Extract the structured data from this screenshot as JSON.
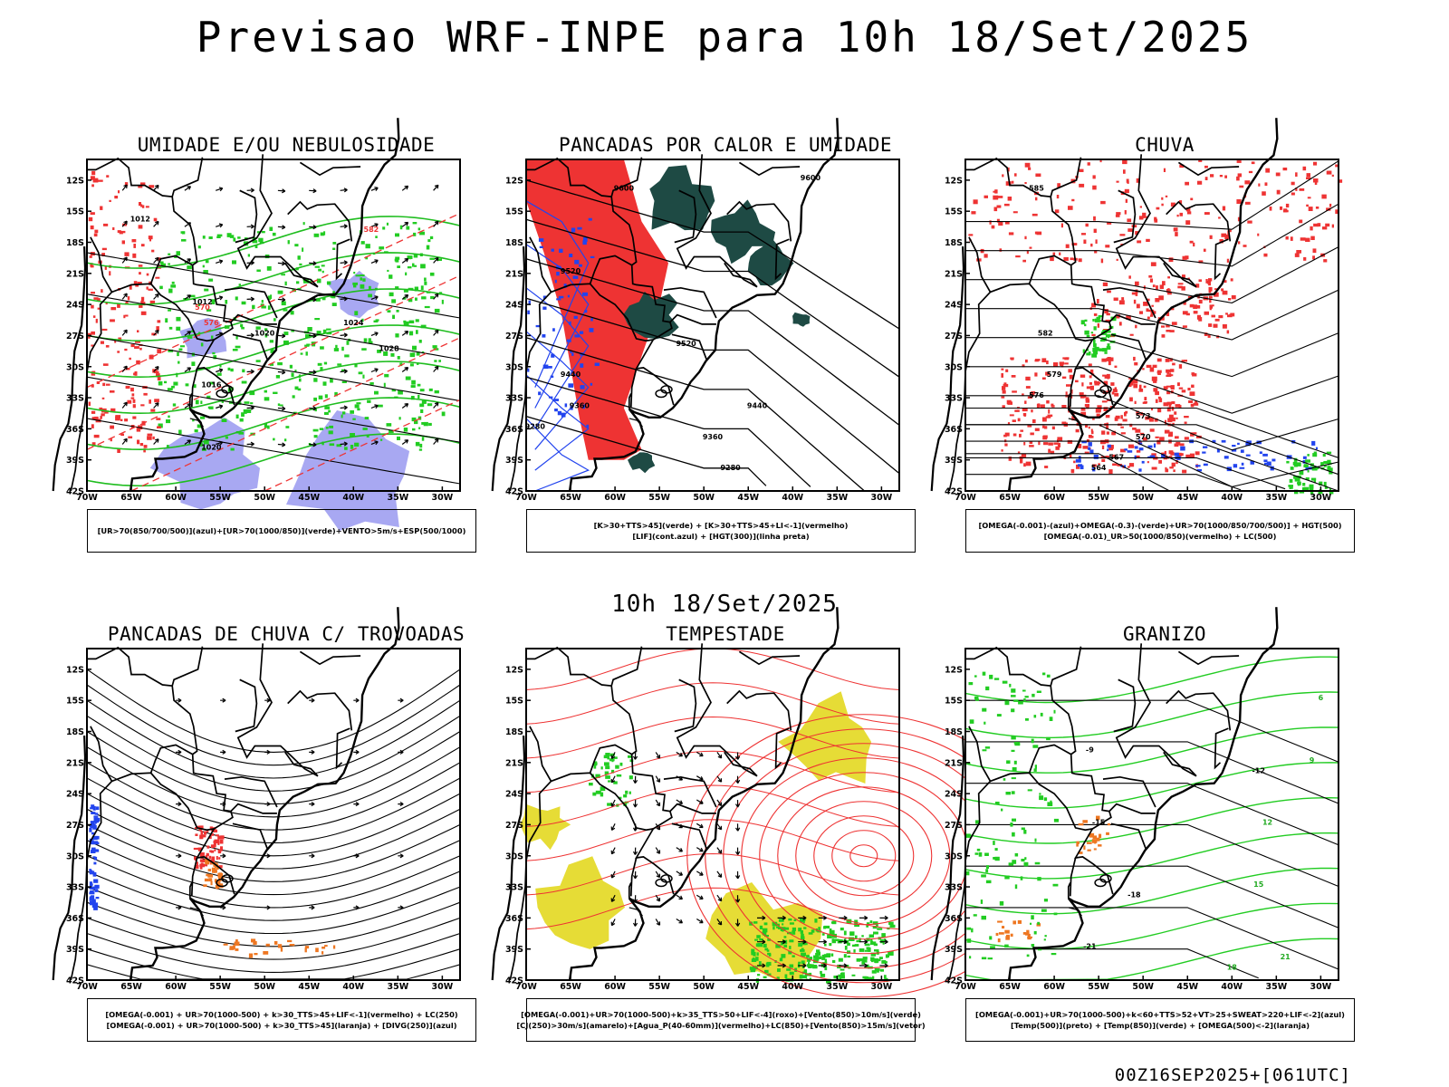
{
  "header": {
    "title": "Previsao WRF-INPE  para 10h 18/Set/2025"
  },
  "middle": {
    "title": "10h 18/Set/2025"
  },
  "footer": {
    "run": "00Z16SEP2025+[061UTC]"
  },
  "axes": {
    "lat_labels": [
      "12S",
      "15S",
      "18S",
      "21S",
      "24S",
      "27S",
      "30S",
      "33S",
      "36S",
      "39S",
      "42S"
    ],
    "lon_labels": [
      "70W",
      "65W",
      "60W",
      "55W",
      "50W",
      "45W",
      "40W",
      "35W",
      "30W"
    ]
  },
  "colors": {
    "umidade_alta": "#9999f0",
    "umidade_baixa": "#22cc22",
    "vermelho": "#ee3333",
    "verde_escuro": "#1e4a44",
    "azul": "#2244ee",
    "laranja": "#ee7722",
    "amarelo": "#e6dc36"
  },
  "panels": [
    {
      "title": "UMIDADE E/OU NEBULOSIDADE",
      "legend": [
        "[UR>70(850/700/500)](azul)+[UR>70(1000/850)](verde)+VENTO>5m/s+ESP(500/1000)"
      ],
      "contour_labels": [
        "1012",
        "1012",
        "1016",
        "1020",
        "1024",
        "1028",
        "570",
        "576",
        "582"
      ]
    },
    {
      "title": "PANCADAS POR CALOR E UMIDADE",
      "legend": [
        "[K>30+TTS>45](verde) + [K>30+TTS>45+LI<-1](vermelho)",
        "[LIF](cont.azul) + [HGT(300)](linha preta)"
      ],
      "contour_labels": [
        "9600",
        "9600",
        "9520",
        "9520",
        "9440",
        "9440",
        "9360",
        "9360",
        "9280",
        "9280"
      ]
    },
    {
      "title": "CHUVA",
      "legend": [
        "[OMEGA(-0.001)-(azul)+OMEGA(-0.3)-(verde)+UR>70(1000/850/700/500)] + HGT(500)",
        "[OMEGA(-0.01)_UR>50(1000/850)(vermelho) + LC(500)"
      ],
      "contour_labels": [
        "585",
        "582",
        "579",
        "576",
        "573",
        "570",
        "567",
        "564"
      ]
    },
    {
      "title": "PANCADAS DE CHUVA C/ TROVOADAS",
      "legend": [
        "[OMEGA(-0.001) + UR>70(1000-500) + k>30_TTS>45+LIF<-1](vermelho) + LC(250)",
        "[OMEGA(-0.001) + UR>70(1000-500) + k>30_TTS>45](laranja) + [DIVG(250)](azul)"
      ],
      "contour_labels": []
    },
    {
      "title": "TEMPESTADE",
      "legend": [
        "[OMEGA(-0.001)+UR>70(1000-500)+k>35_TTS>50+LIF<-4](roxo)+[Vento(850)>10m/s](verde)",
        "[CJ(250)>30m/s](amarelo)+[Agua_P(40-60mm)](vermelho)+LC(850)+[Vento(850)>15m/s](vetor)"
      ],
      "contour_labels": []
    },
    {
      "title": "GRANIZO",
      "legend": [
        "[OMEGA(-0.001)+UR>70(1000-500)+k<60+TTS>52+VT>25+SWEAT>220+LIF<-2](azul)",
        "[Temp(500)](preto) + [Temp(850)](verde) + [OMEGA(500)<-2](laranja)"
      ],
      "contour_labels": [
        "-21",
        "-18",
        "-15",
        "-12",
        "-9",
        "6",
        "9",
        "12",
        "15",
        "18",
        "21"
      ]
    }
  ]
}
